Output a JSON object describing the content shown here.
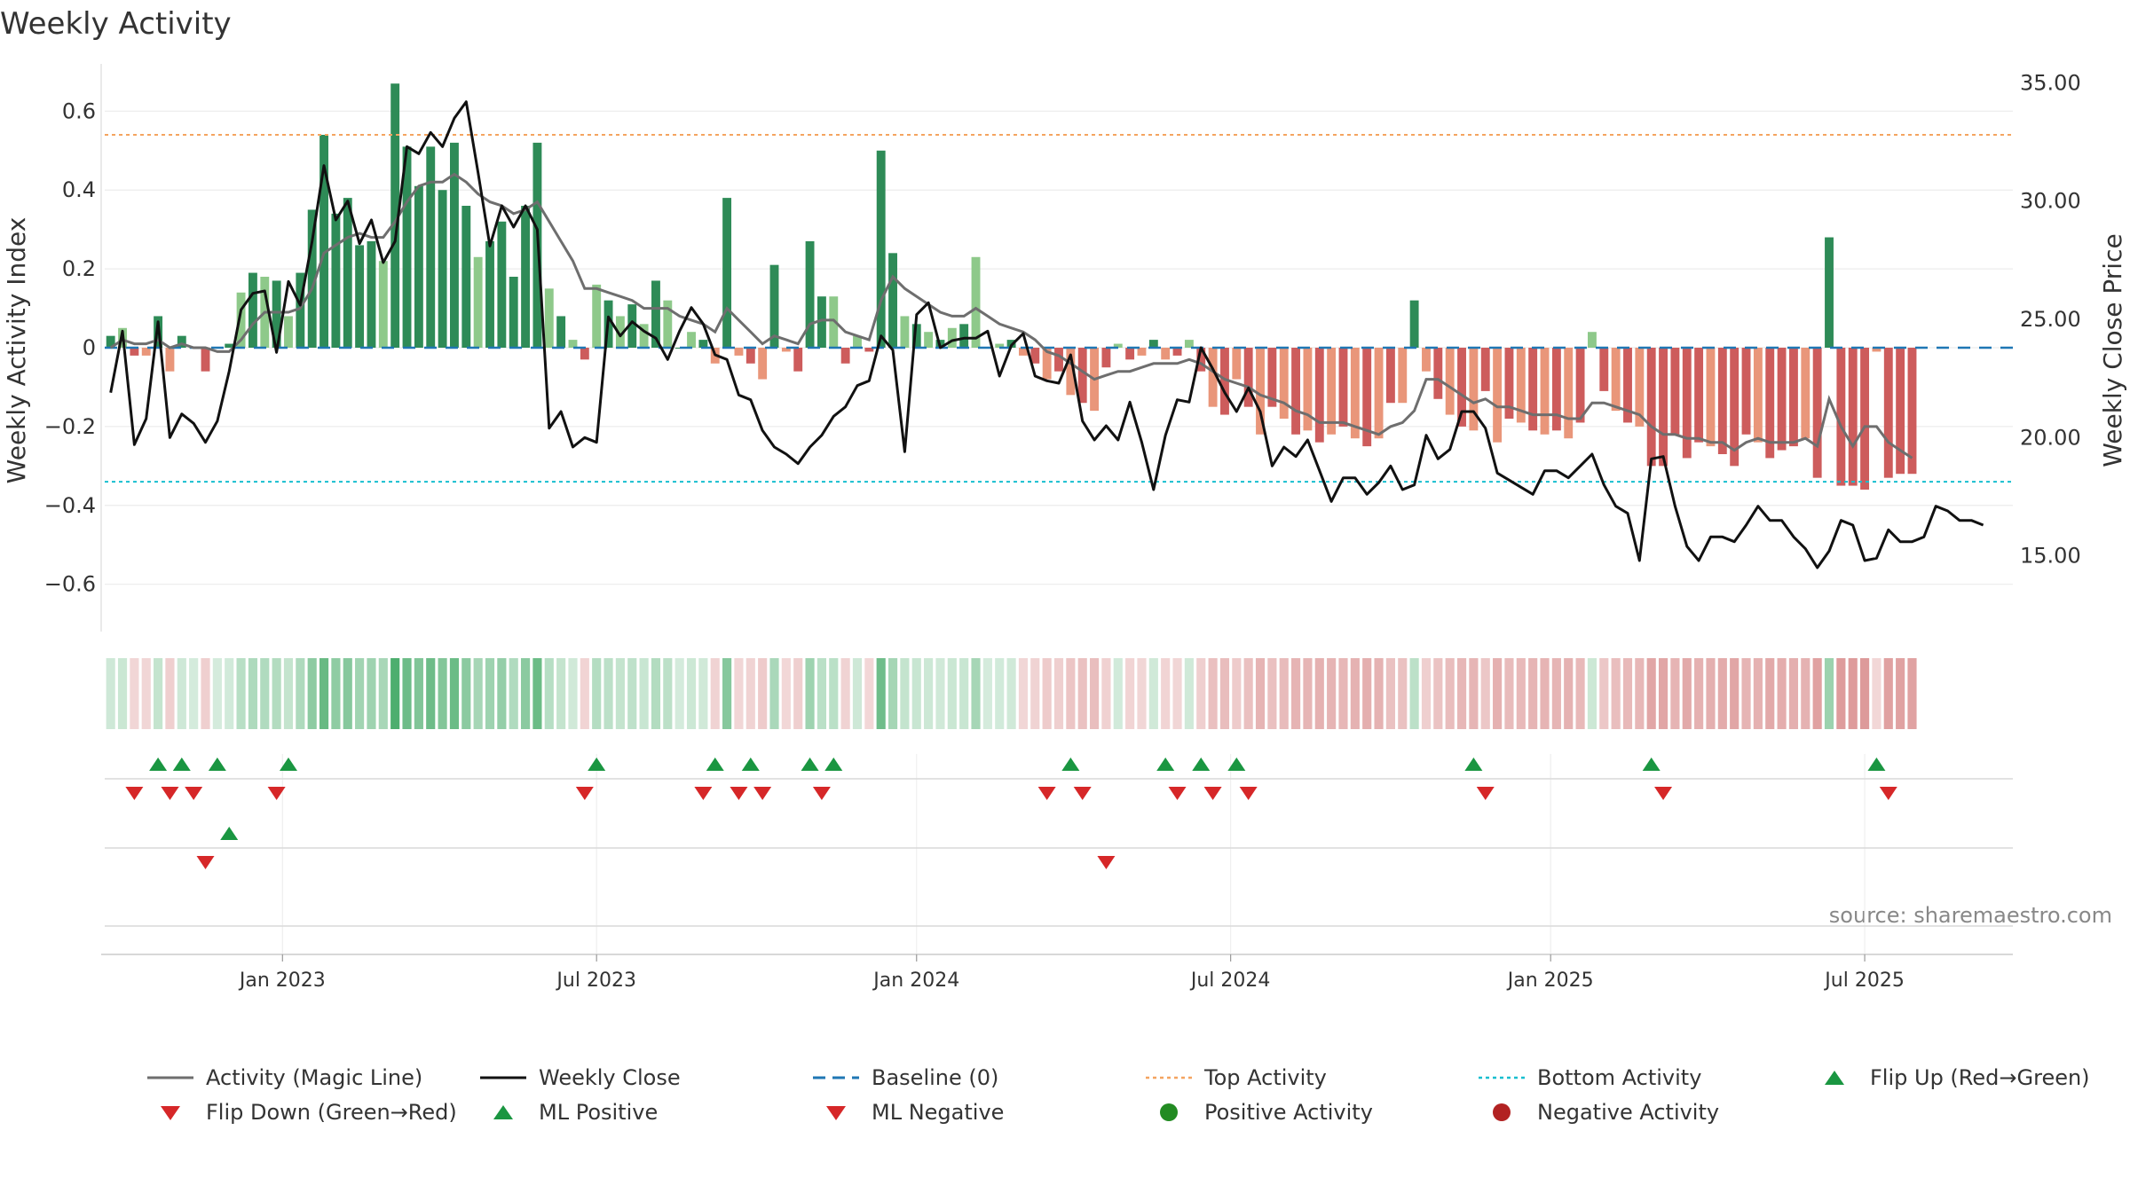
{
  "chart_data": {
    "type": "bar+line",
    "title": "Weekly Activity",
    "ylabel_left": "Weekly Activity Index",
    "ylabel_right": "Weekly Close Price",
    "source": "source: sharemaestro.com",
    "y_left_range": [
      -0.72,
      0.72
    ],
    "y_right_range": [
      11.8,
      35.8
    ],
    "y_left_ticks": [
      {
        "v": 0.6,
        "label": "0.6"
      },
      {
        "v": 0.4,
        "label": "0.4"
      },
      {
        "v": 0.2,
        "label": "0.2"
      },
      {
        "v": 0,
        "label": "0"
      },
      {
        "v": -0.2,
        "label": "−0.2"
      },
      {
        "v": -0.4,
        "label": "−0.4"
      },
      {
        "v": -0.6,
        "label": "−0.6"
      }
    ],
    "y_right_ticks": [
      {
        "v": 35,
        "label": "35.00"
      },
      {
        "v": 30,
        "label": "30.00"
      },
      {
        "v": 25,
        "label": "25.00"
      },
      {
        "v": 20,
        "label": "20.00"
      },
      {
        "v": 15,
        "label": "15.00"
      }
    ],
    "x_range_weeks": [
      0,
      161
    ],
    "x_ticks": [
      {
        "week": 14.5,
        "label": "Jan 2023"
      },
      {
        "week": 41,
        "label": "Jul 2023"
      },
      {
        "week": 68,
        "label": "Jan 2024"
      },
      {
        "week": 94.5,
        "label": "Jul 2024"
      },
      {
        "week": 121.5,
        "label": "Jan 2025"
      },
      {
        "week": 148,
        "label": "Jul 2025"
      }
    ],
    "top_activity": 0.54,
    "bottom_activity": -0.34,
    "baseline": 0,
    "activity": [
      0.03,
      0.05,
      -0.02,
      -0.02,
      0.08,
      -0.06,
      0.03,
      0,
      -0.06,
      0,
      0.01,
      0.14,
      0.19,
      0.18,
      0.17,
      0.08,
      0.19,
      0.35,
      0.54,
      0.34,
      0.38,
      0.26,
      0.27,
      0.22,
      0.67,
      0.51,
      0.41,
      0.51,
      0.4,
      0.52,
      0.36,
      0.23,
      0.27,
      0.32,
      0.18,
      0.36,
      0.52,
      0.15,
      0.08,
      0.02,
      -0.03,
      0.16,
      0.12,
      0.08,
      0.11,
      0.06,
      0.17,
      0.12,
      0,
      0.04,
      0.02,
      -0.04,
      0.38,
      -0.02,
      -0.04,
      -0.08,
      0.21,
      -0.01,
      -0.06,
      0.27,
      0.13,
      0.13,
      -0.04,
      0.03,
      -0.01,
      0.5,
      0.24,
      0.08,
      0.06,
      0.04,
      0.02,
      0.05,
      0.06,
      0.23,
      0,
      0.01,
      0.02,
      -0.02,
      -0.04,
      -0.08,
      -0.06,
      -0.12,
      -0.14,
      -0.16,
      -0.05,
      0.01,
      -0.03,
      -0.02,
      0.02,
      -0.03,
      -0.02,
      0.02,
      -0.06,
      -0.15,
      -0.17,
      -0.08,
      -0.15,
      -0.22,
      -0.15,
      -0.18,
      -0.22,
      -0.21,
      -0.24,
      -0.22,
      -0.2,
      -0.23,
      -0.25,
      -0.23,
      -0.14,
      -0.14,
      0.12,
      -0.06,
      -0.13,
      -0.17,
      -0.2,
      -0.21,
      -0.11,
      -0.24,
      -0.18,
      -0.19,
      -0.21,
      -0.22,
      -0.21,
      -0.23,
      -0.19,
      0.04,
      -0.11,
      -0.16,
      -0.19,
      -0.2,
      -0.3,
      -0.3,
      -0.22,
      -0.28,
      -0.24,
      -0.25,
      -0.27,
      -0.3,
      -0.22,
      -0.24,
      -0.28,
      -0.26,
      -0.25,
      -0.23,
      -0.33,
      0.28,
      -0.35,
      -0.35,
      -0.36,
      -0.01,
      -0.33,
      -0.32,
      -0.32
    ],
    "magic_line": [
      0,
      0.02,
      0.01,
      0.01,
      0.02,
      0,
      0.01,
      0,
      0,
      -0.01,
      -0.01,
      0.02,
      0.06,
      0.09,
      0.09,
      0.09,
      0.1,
      0.15,
      0.24,
      0.26,
      0.28,
      0.29,
      0.28,
      0.28,
      0.32,
      0.37,
      0.41,
      0.42,
      0.42,
      0.44,
      0.42,
      0.39,
      0.37,
      0.36,
      0.34,
      0.35,
      0.37,
      0.32,
      0.27,
      0.22,
      0.15,
      0.15,
      0.14,
      0.13,
      0.12,
      0.1,
      0.1,
      0.1,
      0.08,
      0.07,
      0.06,
      0.04,
      0.1,
      0.07,
      0.04,
      0.01,
      0.03,
      0.02,
      0.01,
      0.06,
      0.07,
      0.07,
      0.04,
      0.03,
      0.02,
      0.12,
      0.18,
      0.15,
      0.13,
      0.11,
      0.09,
      0.08,
      0.08,
      0.1,
      0.08,
      0.06,
      0.05,
      0.04,
      0.02,
      -0.01,
      -0.02,
      -0.04,
      -0.06,
      -0.08,
      -0.07,
      -0.06,
      -0.06,
      -0.05,
      -0.04,
      -0.04,
      -0.04,
      -0.03,
      -0.04,
      -0.06,
      -0.08,
      -0.09,
      -0.1,
      -0.12,
      -0.13,
      -0.14,
      -0.16,
      -0.17,
      -0.19,
      -0.19,
      -0.19,
      -0.2,
      -0.21,
      -0.22,
      -0.2,
      -0.19,
      -0.16,
      -0.08,
      -0.08,
      -0.1,
      -0.12,
      -0.14,
      -0.13,
      -0.15,
      -0.15,
      -0.16,
      -0.17,
      -0.17,
      -0.17,
      -0.18,
      -0.18,
      -0.14,
      -0.14,
      -0.15,
      -0.16,
      -0.17,
      -0.2,
      -0.22,
      -0.22,
      -0.23,
      -0.23,
      -0.24,
      -0.24,
      -0.26,
      -0.24,
      -0.23,
      -0.24,
      -0.24,
      -0.24,
      -0.23,
      -0.25,
      -0.13,
      -0.2,
      -0.25,
      -0.2,
      -0.2,
      -0.24,
      -0.26,
      -0.28
    ],
    "close": [
      21.9,
      24.5,
      19.7,
      20.8,
      24.9,
      20,
      21,
      20.6,
      19.8,
      20.7,
      22.8,
      25.4,
      26.1,
      26.2,
      23.6,
      26.6,
      25.6,
      28.3,
      31.5,
      29.2,
      30,
      28.2,
      29.2,
      27.4,
      28.3,
      32.3,
      32,
      32.9,
      32.3,
      33.5,
      34.2,
      31.2,
      28.1,
      29.8,
      28.9,
      29.8,
      28.8,
      20.4,
      21.1,
      19.6,
      20,
      19.8,
      25.1,
      24.3,
      24.9,
      24.5,
      24.2,
      23.3,
      24.5,
      25.5,
      24.8,
      23.5,
      23.3,
      21.8,
      21.6,
      20.3,
      19.6,
      19.3,
      18.9,
      19.6,
      20.1,
      20.9,
      21.3,
      22.2,
      22.4,
      24.3,
      23.7,
      19.4,
      25.2,
      25.7,
      23.8,
      24.1,
      24.2,
      24.2,
      24.5,
      22.6,
      23.9,
      24.4,
      22.6,
      22.4,
      22.3,
      23.5,
      20.7,
      19.9,
      20.5,
      19.9,
      21.5,
      19.8,
      17.8,
      20.1,
      21.6,
      21.5,
      23.8,
      22.9,
      21.9,
      21.1,
      22.1,
      21.1,
      18.8,
      19.6,
      19.2,
      19.9,
      18.6,
      17.3,
      18.3,
      18.3,
      17.6,
      18.1,
      18.8,
      17.8,
      18,
      20.1,
      19.1,
      19.5,
      21.1,
      21.1,
      20.4,
      18.5,
      18.2,
      17.9,
      17.6,
      18.6,
      18.6,
      18.3,
      18.8,
      19.3,
      18,
      17.1,
      16.8,
      14.8,
      19.1,
      19.2,
      17.1,
      15.4,
      14.8,
      15.8,
      15.8,
      15.6,
      16.3,
      17.1,
      16.5,
      16.5,
      15.8,
      15.3,
      14.5,
      15.2,
      16.5,
      16.3,
      14.8,
      14.9,
      16.1,
      15.6,
      15.6,
      15.8,
      17.1,
      16.9,
      16.5,
      16.5,
      16.3
    ],
    "flip_up_weeks": [
      4,
      6,
      9,
      15,
      41,
      51,
      54,
      59,
      61,
      81,
      89,
      92,
      95,
      115,
      130,
      149
    ],
    "flip_down_weeks": [
      2,
      5,
      7,
      14,
      40,
      50,
      53,
      55,
      60,
      79,
      82,
      90,
      93,
      96,
      116,
      131,
      150
    ],
    "ml_positive_weeks": [
      10
    ],
    "ml_negative_weeks": [
      8,
      84
    ],
    "legend": [
      {
        "key": "activity_magic_line",
        "label": "Activity (Magic Line)"
      },
      {
        "key": "weekly_close",
        "label": "Weekly Close"
      },
      {
        "key": "baseline",
        "label": "Baseline (0)"
      },
      {
        "key": "top_activity",
        "label": "Top Activity"
      },
      {
        "key": "bottom_activity",
        "label": "Bottom Activity"
      },
      {
        "key": "flip_up",
        "label": "Flip Up (Red→Green)"
      },
      {
        "key": "flip_down",
        "label": "Flip Down (Green→Red)"
      },
      {
        "key": "ml_positive",
        "label": "ML Positive"
      },
      {
        "key": "ml_negative",
        "label": "ML Negative"
      },
      {
        "key": "positive_activity",
        "label": "Positive Activity"
      },
      {
        "key": "negative_activity",
        "label": "Negative Activity"
      }
    ],
    "colors": {
      "bar_pos_strong": "#2e8b57",
      "bar_pos_light": "#8ec98a",
      "bar_neg_strong": "#cd5c5c",
      "bar_neg_light": "#e9967a",
      "close": "#111111",
      "magic": "#6e6e6e",
      "baseline": "#1f77b4",
      "top": "#f4a460",
      "bottom": "#17becf",
      "flip_up": "#1a9641",
      "flip_down": "#d62728",
      "pos_dot": "#228b22",
      "neg_dot": "#b22222"
    }
  }
}
